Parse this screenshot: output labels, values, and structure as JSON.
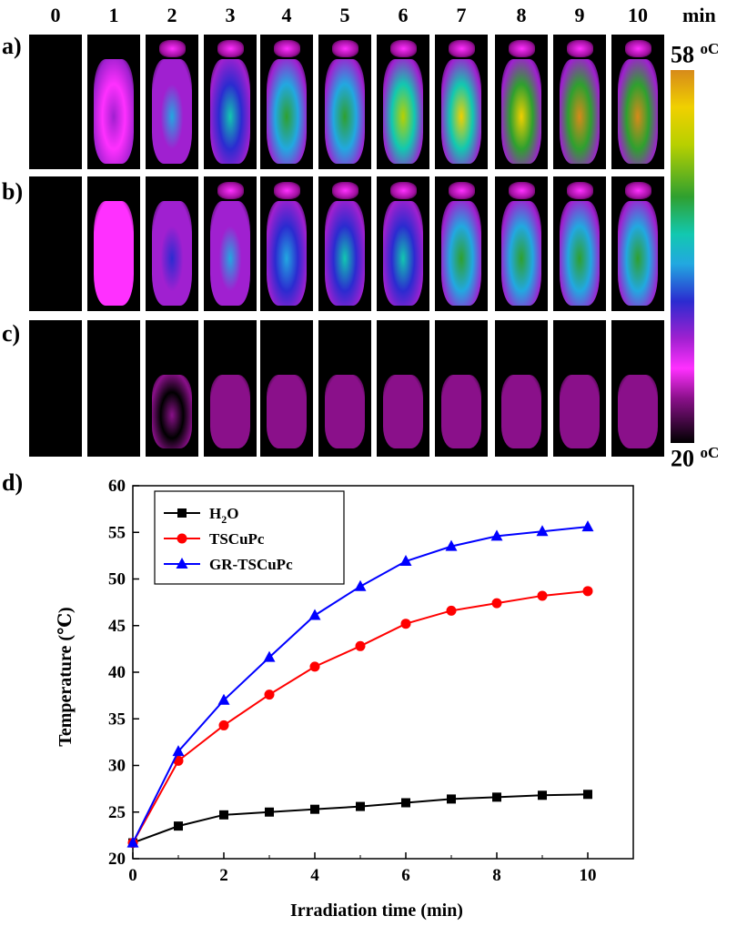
{
  "panel_labels": {
    "a": "a)",
    "b": "b)",
    "c": "c)",
    "d": "d)"
  },
  "time_header": [
    "0",
    "1",
    "2",
    "3",
    "4",
    "5",
    "6",
    "7",
    "8",
    "9",
    "10"
  ],
  "time_unit": "min",
  "colorbar": {
    "max_value": "58",
    "min_value": "20",
    "unit": "oC"
  },
  "thermal_images": {
    "a_intensity": [
      0.0,
      0.3,
      0.45,
      0.55,
      0.65,
      0.72,
      0.8,
      0.88,
      0.93,
      0.97,
      1.0
    ],
    "b_intensity": [
      0.0,
      0.22,
      0.36,
      0.45,
      0.52,
      0.58,
      0.63,
      0.66,
      0.69,
      0.71,
      0.73
    ],
    "c_intensity": [
      0.0,
      0.04,
      0.06,
      0.08,
      0.09,
      0.1,
      0.11,
      0.12,
      0.12,
      0.13,
      0.13
    ]
  },
  "chart_data": {
    "type": "line",
    "xlabel": "Irradiation time (min)",
    "ylabel": "Temperature (℃)",
    "xlim": [
      0,
      11
    ],
    "ylim": [
      20,
      60
    ],
    "xticks": [
      0,
      2,
      4,
      6,
      8,
      10
    ],
    "yticks": [
      20,
      25,
      30,
      35,
      40,
      45,
      50,
      55,
      60
    ],
    "x": [
      0,
      1,
      2,
      3,
      4,
      5,
      6,
      7,
      8,
      9,
      10
    ],
    "legend_position": "top-left",
    "series": [
      {
        "name": "H2O",
        "color": "#000000",
        "marker": "square",
        "values": [
          21.7,
          23.5,
          24.7,
          25.0,
          25.3,
          25.6,
          26.0,
          26.4,
          26.6,
          26.8,
          26.9
        ]
      },
      {
        "name": "TSCuPc",
        "color": "#ff0000",
        "marker": "circle",
        "values": [
          21.7,
          30.5,
          34.3,
          37.6,
          40.6,
          42.8,
          45.2,
          46.6,
          47.4,
          48.2,
          48.7
        ]
      },
      {
        "name": "GR-TSCuPc",
        "color": "#0000ff",
        "marker": "triangle",
        "values": [
          21.7,
          31.5,
          37.0,
          41.6,
          46.1,
          49.2,
          51.9,
          53.5,
          54.6,
          55.1,
          55.6
        ]
      }
    ]
  }
}
